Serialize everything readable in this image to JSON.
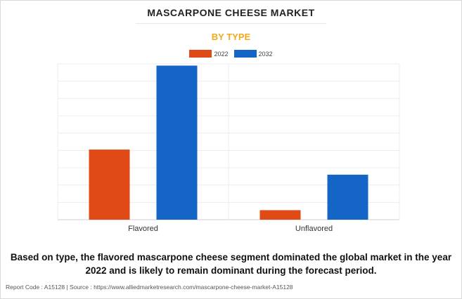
{
  "header": {
    "title": "MASCARPONE CHEESE MARKET",
    "subtitle": "BY TYPE"
  },
  "colors": {
    "series_2022": "#e04a16",
    "series_2032": "#1565c7",
    "subtitle": "#f0a81c"
  },
  "chart_data": {
    "type": "bar",
    "categories": [
      "Flavored",
      "Unflavored"
    ],
    "series": [
      {
        "name": "2022",
        "color": "#e04a16",
        "values": [
          40.5,
          5.5
        ]
      },
      {
        "name": "2032",
        "color": "#1565c7",
        "values": [
          89.0,
          26.0
        ]
      }
    ],
    "ylim": [
      0,
      90
    ],
    "grid": true,
    "legend": "top-center"
  },
  "caption": "Based on type, the flavored mascarpone cheese segment dominated the global market in the year 2022 and is likely to remain dominant during the forecast period.",
  "footer": "Report Code : A15128  |  Source : https://www.alliedmarketresearch.com/mascarpone-cheese-market-A15128"
}
